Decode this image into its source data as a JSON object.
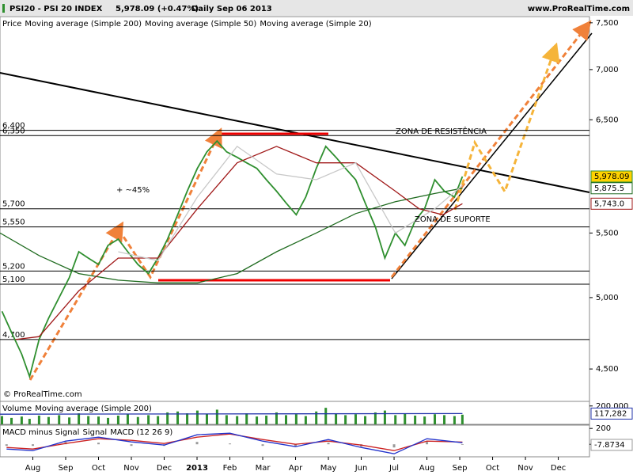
{
  "header": {
    "symbol": "PSI20 - PSI 20 INDEX",
    "quote": "5,978.09 (+0.47%)",
    "period": "Daily  Sep 06 2013",
    "site": "www.ProRealTime.com"
  },
  "chart_data": [
    {
      "type": "line",
      "log": true,
      "xlim": [
        0,
        17.95
      ],
      "ylim": [
        4290,
        7560
      ],
      "xticks": [
        {
          "value": 1,
          "label": "Aug"
        },
        {
          "value": 2,
          "label": "Sep"
        },
        {
          "value": 3,
          "label": "Oct"
        },
        {
          "value": 4,
          "label": "Nov"
        },
        {
          "value": 5,
          "label": "Dec"
        },
        {
          "value": 6,
          "label": "2013"
        },
        {
          "value": 7,
          "label": "Feb"
        },
        {
          "value": 8,
          "label": "Mar"
        },
        {
          "value": 9,
          "label": "Apr"
        },
        {
          "value": 10,
          "label": "May"
        },
        {
          "value": 11,
          "label": "Jun"
        },
        {
          "value": 12,
          "label": "Jul"
        },
        {
          "value": 13,
          "label": "Aug"
        },
        {
          "value": 14,
          "label": "Sep"
        },
        {
          "value": 15,
          "label": "Oct"
        },
        {
          "value": 16,
          "label": "Nov"
        },
        {
          "value": 17,
          "label": "Dec"
        }
      ],
      "yticks": [
        {
          "value": 4500,
          "label": "4,500"
        },
        {
          "value": 5000,
          "label": "5,000"
        },
        {
          "value": 5500,
          "label": "5,500"
        },
        {
          "value": 6500,
          "label": "6,500"
        },
        {
          "value": 7000,
          "label": "7,000"
        },
        {
          "value": 7500,
          "label": "7,500"
        }
      ],
      "levels": [
        {
          "value": 6400,
          "label": "6,400"
        },
        {
          "value": 6350,
          "label": "6,350"
        },
        {
          "value": 5700,
          "label": "5,700"
        },
        {
          "value": 5550,
          "label": "5,550"
        },
        {
          "value": 5200,
          "label": "5,200"
        },
        {
          "value": 5100,
          "label": "5,100"
        },
        {
          "value": 4700,
          "label": "4,700"
        }
      ],
      "annotations": [
        "ZONA DE RESISTÊNCIA",
        "ZONA DE SUPORTE",
        "+ ~45%"
      ],
      "copyright": "© ProRealTime.com",
      "series": [
        {
          "name": "Price",
          "color": "#2f8f2f",
          "last_label": "5,978.09",
          "x": [
            0.06,
            0.35,
            0.66,
            0.9,
            1.19,
            1.48,
            1.8,
            2.11,
            2.4,
            2.69,
            3.0,
            3.29,
            3.6,
            3.89,
            4.2,
            4.52,
            4.81,
            5.1,
            5.41,
            5.7,
            6.01,
            6.3,
            6.61,
            6.9,
            7.22,
            7.51,
            7.82,
            8.11,
            8.42,
            8.71,
            9.02,
            9.31,
            9.63,
            9.92,
            10.23,
            10.52,
            10.83,
            11.12,
            11.43,
            11.72,
            12.04,
            12.33,
            12.64,
            12.93,
            13.24,
            13.53,
            13.84,
            14.08
          ],
          "values": [
            4900,
            4750,
            4600,
            4450,
            4700,
            4850,
            5000,
            5150,
            5350,
            5300,
            5250,
            5400,
            5450,
            5350,
            5250,
            5180,
            5300,
            5450,
            5650,
            5850,
            6050,
            6200,
            6300,
            6200,
            6150,
            6100,
            6050,
            5950,
            5850,
            5750,
            5650,
            5800,
            6050,
            6250,
            6150,
            6050,
            5950,
            5750,
            5550,
            5300,
            5500,
            5400,
            5600,
            5700,
            5950,
            5850,
            5800,
            5978.09
          ]
        },
        {
          "name": "Moving average (Simple 200)",
          "color": "#1f6b1f",
          "last_label": "5,875.5",
          "x": [
            0,
            1.19,
            2.4,
            3.6,
            4.81,
            6.01,
            7.22,
            8.42,
            9.63,
            10.83,
            12.04,
            13.24,
            14.08
          ],
          "values": [
            5500,
            5320,
            5180,
            5130,
            5110,
            5110,
            5180,
            5350,
            5500,
            5660,
            5760,
            5830,
            5875.5
          ]
        },
        {
          "name": "Moving average (Simple 50)",
          "color": "#a01818",
          "last_label": "5,743.0",
          "x": [
            0.47,
            1.19,
            2.4,
            3.6,
            4.81,
            6.01,
            7.22,
            8.42,
            9.63,
            10.83,
            12.04,
            12.76,
            13.48,
            14.08
          ],
          "values": [
            4700,
            4720,
            5050,
            5300,
            5300,
            5700,
            6100,
            6250,
            6100,
            6100,
            5850,
            5700,
            5650,
            5743
          ]
        },
        {
          "name": "Moving average (Simple 20)",
          "color": "#c8c8c8",
          "x": [
            3.6,
            4.81,
            6.01,
            7.22,
            8.42,
            9.63,
            10.83,
            12.04,
            13.24,
            14.08
          ],
          "values": [
            5350,
            5280,
            5800,
            6250,
            6000,
            5950,
            6100,
            5500,
            5700,
            5900
          ]
        }
      ]
    },
    {
      "type": "bar",
      "xlim": [
        0,
        17.95
      ],
      "ylim": [
        0,
        250000
      ],
      "yticks": [
        {
          "value": 200000,
          "label": "200,000"
        }
      ],
      "series": [
        {
          "name": "Volume",
          "type": "bar",
          "color": "#2f8f2f",
          "x": [
            0.06,
            0.35,
            0.66,
            0.9,
            1.19,
            1.48,
            1.8,
            2.11,
            2.4,
            2.69,
            3.0,
            3.29,
            3.6,
            3.89,
            4.2,
            4.52,
            4.81,
            5.1,
            5.41,
            5.7,
            6.01,
            6.3,
            6.61,
            6.9,
            7.22,
            7.51,
            7.82,
            8.11,
            8.42,
            8.71,
            9.02,
            9.31,
            9.63,
            9.92,
            10.23,
            10.52,
            10.83,
            11.12,
            11.43,
            11.72,
            12.04,
            12.33,
            12.64,
            12.93,
            13.24,
            13.53,
            13.84,
            14.08
          ],
          "values": [
            90000,
            70000,
            85000,
            60000,
            95000,
            80000,
            100000,
            75000,
            120000,
            90000,
            85000,
            70000,
            95000,
            110000,
            80000,
            100000,
            90000,
            130000,
            140000,
            120000,
            150000,
            110000,
            160000,
            100000,
            90000,
            120000,
            85000,
            95000,
            130000,
            100000,
            110000,
            90000,
            140000,
            180000,
            120000,
            100000,
            110000,
            90000,
            130000,
            150000,
            100000,
            120000,
            95000,
            85000,
            110000,
            100000,
            90000,
            105000
          ]
        },
        {
          "name": "Moving average (Simple 200)",
          "color": "#2233aa",
          "last_label": "117,282",
          "x": [
            0,
            14.08
          ],
          "values": [
            110000,
            117282
          ]
        }
      ]
    },
    {
      "type": "line",
      "xlim": [
        0,
        17.95
      ],
      "ylim": [
        -158,
        242
      ],
      "yticks": [
        200,
        0
      ],
      "series": [
        {
          "name": "MACD minus Signal",
          "type": "bar",
          "color": "#999999",
          "last_label": "-7.8734",
          "x": [
            0.2,
            1,
            2,
            3,
            4,
            5,
            6,
            7,
            8,
            9,
            10,
            11,
            12,
            13,
            14.08
          ],
          "values": [
            -20,
            -20,
            30,
            20,
            -20,
            -20,
            30,
            10,
            -20,
            -30,
            20,
            -30,
            -40,
            30,
            -7.8734
          ]
        },
        {
          "name": "Signal",
          "color": "#cc2222",
          "x": [
            0.2,
            1,
            2,
            3,
            4,
            5,
            6,
            7,
            8,
            9,
            10,
            11,
            12,
            13,
            14.08
          ],
          "values": [
            -40,
            -60,
            10,
            70,
            50,
            10,
            90,
            130,
            60,
            0,
            40,
            -10,
            -80,
            40,
            28
          ]
        },
        {
          "name": "MACD (12 26 9)",
          "color": "#2233cc",
          "x": [
            0.2,
            1,
            2,
            3,
            4,
            5,
            6,
            7,
            8,
            9,
            10,
            11,
            12,
            13,
            14.08
          ],
          "values": [
            -60,
            -80,
            40,
            90,
            30,
            -10,
            120,
            140,
            40,
            -30,
            60,
            -40,
            -120,
            70,
            20
          ]
        }
      ]
    }
  ]
}
